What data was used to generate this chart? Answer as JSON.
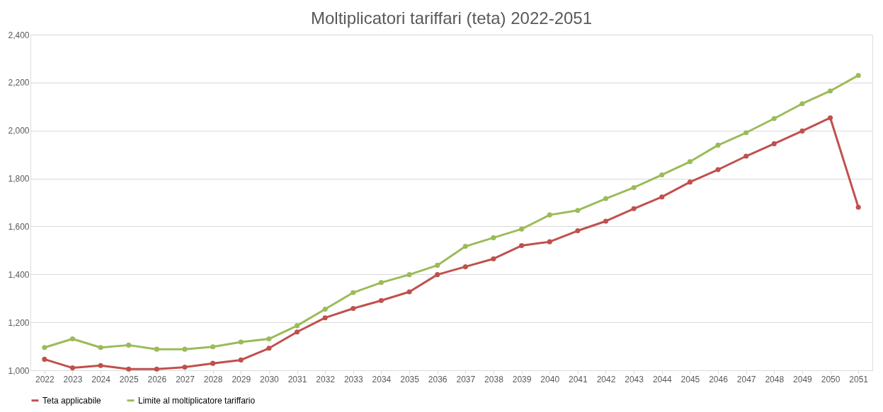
{
  "chart_data": {
    "type": "line",
    "title": "Moltiplicatori tariffari (teta) 2022-2051",
    "categories": [
      "2022",
      "2023",
      "2024",
      "2025",
      "2026",
      "2027",
      "2028",
      "2029",
      "2030",
      "2031",
      "2032",
      "2033",
      "2034",
      "2035",
      "2036",
      "2037",
      "2038",
      "2039",
      "2040",
      "2041",
      "2042",
      "2043",
      "2044",
      "2045",
      "2046",
      "2047",
      "2048",
      "2049",
      "2050",
      "2051"
    ],
    "series": [
      {
        "name": "Teta applicabile",
        "color": "#c0504d",
        "values": [
          1046,
          1010,
          1020,
          1005,
          1005,
          1013,
          1029,
          1043,
          1092,
          1160,
          1219,
          1258,
          1291,
          1327,
          1399,
          1432,
          1465,
          1520,
          1536,
          1582,
          1622,
          1674,
          1723,
          1785,
          1837,
          1893,
          1945,
          1998,
          2053,
          1680
        ]
      },
      {
        "name": "Limite al moltiplicatore tariffario",
        "color": "#9bbb59",
        "values": [
          1095,
          1131,
          1095,
          1105,
          1088,
          1088,
          1098,
          1118,
          1131,
          1186,
          1255,
          1324,
          1366,
          1399,
          1438,
          1517,
          1553,
          1589,
          1648,
          1667,
          1716,
          1762,
          1815,
          1870,
          1939,
          1991,
          2050,
          2112,
          2165,
          2230
        ]
      }
    ],
    "ylim": [
      1000,
      2400
    ],
    "yticks": [
      {
        "value": 1000,
        "label": "1,000"
      },
      {
        "value": 1200,
        "label": "1,200"
      },
      {
        "value": 1400,
        "label": "1,400"
      },
      {
        "value": 1600,
        "label": "1,600"
      },
      {
        "value": 1800,
        "label": "1,800"
      },
      {
        "value": 2000,
        "label": "2,000"
      },
      {
        "value": 2200,
        "label": "2,200"
      },
      {
        "value": 2400,
        "label": "2,400"
      }
    ],
    "grid": "y",
    "legend": "bottom",
    "marker": "circle",
    "line_style": "solid"
  }
}
